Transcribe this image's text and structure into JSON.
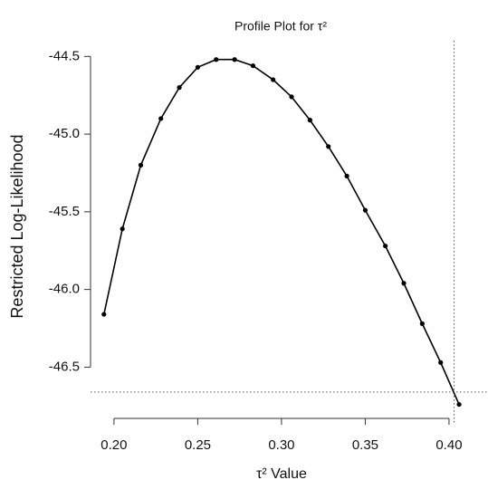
{
  "chart_data": {
    "type": "line",
    "title": "Profile Plot for τ²",
    "x_label": "τ² Value",
    "y_label": "Restricted Log-Likelihood",
    "x": [
      0.194,
      0.205,
      0.216,
      0.228,
      0.239,
      0.25,
      0.261,
      0.272,
      0.283,
      0.295,
      0.306,
      0.317,
      0.328,
      0.339,
      0.35,
      0.362,
      0.373,
      0.384,
      0.395,
      0.406
    ],
    "series": [
      {
        "name": "Restricted Log-Likelihood",
        "color": "#000000",
        "values": [
          -46.16,
          -45.61,
          -45.2,
          -44.9,
          -44.7,
          -44.57,
          -44.52,
          -44.52,
          -44.56,
          -44.65,
          -44.76,
          -44.91,
          -45.08,
          -45.27,
          -45.49,
          -45.72,
          -45.96,
          -46.22,
          -46.47,
          -46.74
        ]
      }
    ],
    "xlim": [
      0.186,
      0.413
    ],
    "ylim": [
      -46.83,
      -44.37
    ],
    "xticks": [
      {
        "value": 0.2,
        "label": "0.20"
      },
      0.25,
      {
        "value": 0.3,
        "label": "0.30"
      },
      0.35,
      {
        "value": 0.4,
        "label": "0.40"
      }
    ],
    "yticks": [
      -44.5,
      {
        "value": -45,
        "label": "-45.0"
      },
      -45.5,
      {
        "value": -46,
        "label": "-46.0"
      },
      -46.5
    ],
    "hlines": [
      -46.66
    ],
    "vlines": [
      0.403
    ]
  }
}
